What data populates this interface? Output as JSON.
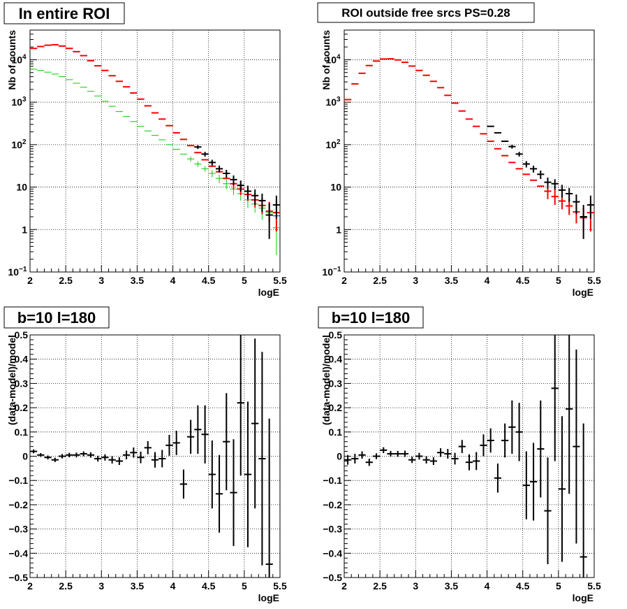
{
  "colors": {
    "data": "#000000",
    "model": "#ff0000",
    "total": "#0000ff",
    "component": "#00cc00"
  },
  "chart_data": [
    {
      "id": "p1",
      "type": "scatter",
      "title": "In entire ROI",
      "xlabel": "logE",
      "ylabel": "Nb of counts",
      "xlim": [
        2,
        5.5
      ],
      "ylim": [
        0.1,
        50000
      ],
      "yscale": "log",
      "grid": true,
      "xticks": [
        "2",
        "2.5",
        "3",
        "3.5",
        "4",
        "4.5",
        "5",
        "5.5"
      ],
      "yticks": [
        {
          "v": 0.1,
          "b": "10",
          "e": "−1"
        },
        {
          "v": 1,
          "b": "1"
        },
        {
          "v": 10,
          "b": "10"
        },
        {
          "v": 100,
          "b": "10",
          "e": "2"
        },
        {
          "v": 1000,
          "b": "10",
          "e": "3"
        },
        {
          "v": 10000,
          "b": "10",
          "e": "4"
        }
      ],
      "series": [
        {
          "color": "#0000ff",
          "x": [
            2.05,
            2.15,
            2.25,
            2.35,
            2.45,
            2.55,
            2.65,
            2.75,
            2.85,
            2.95,
            3.05,
            3.15,
            3.25,
            3.35,
            3.45,
            3.55,
            3.65,
            3.75,
            3.85,
            3.95,
            4.05,
            4.15,
            4.25,
            4.35,
            4.45,
            4.55,
            4.65,
            4.75,
            4.85,
            4.95,
            5.05,
            5.15,
            5.25,
            5.35,
            5.45
          ],
          "y": [
            18500,
            20500,
            22000,
            22500,
            21000,
            18500,
            15500,
            12500,
            9500,
            7200,
            5600,
            4200,
            3100,
            2300,
            1650,
            1180,
            820,
            560,
            400,
            280,
            190,
            133,
            95,
            65,
            44,
            31,
            23,
            16,
            12,
            9,
            6.7,
            5,
            3.7,
            2.7,
            2.1
          ]
        },
        {
          "color": "#00cc00",
          "x": [
            2.05,
            2.15,
            2.25,
            2.35,
            2.45,
            2.55,
            2.65,
            2.75,
            2.85,
            2.95,
            3.05,
            3.15,
            3.25,
            3.35,
            3.45,
            3.55,
            3.65,
            3.75,
            3.85,
            3.95,
            4.05,
            4.15,
            4.25,
            4.35,
            4.45,
            4.55,
            4.65,
            4.75,
            4.85,
            4.95,
            5.05,
            5.15,
            5.25,
            5.35,
            5.45
          ],
          "y": [
            6000,
            5600,
            5100,
            4600,
            4000,
            3400,
            2800,
            2250,
            1800,
            1400,
            1050,
            800,
            600,
            460,
            350,
            270,
            210,
            165,
            130,
            100,
            78,
            60,
            46,
            35,
            27,
            21,
            16,
            12,
            9,
            7,
            5,
            4,
            3.2,
            2.5,
            1.1
          ],
          "yerr_lo": [
            0,
            0,
            0,
            0,
            0,
            0,
            0,
            0,
            0,
            0,
            0,
            0,
            0,
            0,
            0,
            0,
            0,
            0,
            0,
            0,
            0,
            0,
            6,
            5,
            4,
            4,
            3.5,
            3,
            2.5,
            2.2,
            1.8,
            1.5,
            1.5,
            1.3,
            0.85
          ]
        },
        {
          "color": "#ff0000",
          "x": [
            2.05,
            2.15,
            2.25,
            2.35,
            2.45,
            2.55,
            2.65,
            2.75,
            2.85,
            2.95,
            3.05,
            3.15,
            3.25,
            3.35,
            3.45,
            3.55,
            3.65,
            3.75,
            3.85,
            3.95,
            4.05,
            4.15,
            4.25,
            4.35,
            4.45,
            4.55,
            4.65,
            4.75,
            4.85,
            4.95,
            5.05,
            5.15,
            5.25,
            5.35,
            5.45
          ],
          "y": [
            18500,
            20500,
            22000,
            22500,
            21000,
            18500,
            15500,
            12500,
            9500,
            7200,
            5600,
            4200,
            3100,
            2300,
            1650,
            1180,
            820,
            560,
            400,
            280,
            190,
            133,
            95,
            65,
            44,
            31,
            23,
            16,
            12,
            9,
            6.7,
            5,
            3.7,
            2.7,
            2.5
          ],
          "yerr_lo": [
            0,
            0,
            0,
            0,
            0,
            0,
            0,
            0,
            0,
            0,
            0,
            0,
            0,
            0,
            0,
            0,
            0,
            0,
            0,
            0,
            0,
            0,
            0,
            0,
            0,
            0,
            0,
            0,
            3,
            2.5,
            2,
            1.7,
            1.4,
            1.2,
            1.6
          ],
          "yerr_hi": [
            0,
            0,
            0,
            0,
            0,
            0,
            0,
            0,
            0,
            0,
            0,
            0,
            0,
            0,
            0,
            0,
            0,
            0,
            0,
            0,
            0,
            0,
            0,
            0,
            0,
            0,
            0,
            0,
            3.5,
            3,
            2.5,
            2.2,
            2,
            1.8,
            2.3
          ]
        },
        {
          "color": "#000000",
          "x": [
            4.35,
            4.45,
            4.55,
            4.65,
            4.75,
            4.85,
            4.95,
            5.05,
            5.15,
            5.25,
            5.35,
            5.45
          ],
          "y": [
            88,
            60,
            38,
            27,
            21,
            15,
            11,
            8,
            6.3,
            4.8,
            2.2,
            3.8
          ],
          "yerr_lo": [
            9,
            7.5,
            6,
            5,
            4.5,
            3.8,
            3.3,
            2.8,
            2.5,
            2.2,
            1.6,
            2
          ],
          "yerr_hi": [
            9,
            7.5,
            6,
            5,
            4.5,
            3.8,
            3.3,
            2.8,
            2.5,
            2.2,
            2,
            2.5
          ]
        }
      ]
    },
    {
      "id": "p2",
      "type": "scatter",
      "title": "ROI outside free srcs PS=0.28",
      "xlabel": "logE",
      "ylabel": "Nb of counts",
      "xlim": [
        2,
        5.5
      ],
      "ylim": [
        0.1,
        50000
      ],
      "yscale": "log",
      "grid": true,
      "xticks": [
        "2",
        "2.5",
        "3",
        "3.5",
        "4",
        "4.5",
        "5",
        "5.5"
      ],
      "yticks": [
        {
          "v": 0.1,
          "b": "10",
          "e": "−1"
        },
        {
          "v": 1,
          "b": "1"
        },
        {
          "v": 10,
          "b": "10"
        },
        {
          "v": 100,
          "b": "10",
          "e": "2"
        },
        {
          "v": 1000,
          "b": "10",
          "e": "3"
        },
        {
          "v": 10000,
          "b": "10",
          "e": "4"
        }
      ],
      "series": [
        {
          "color": "#ff0000",
          "x": [
            2.05,
            2.15,
            2.25,
            2.35,
            2.45,
            2.55,
            2.65,
            2.75,
            2.85,
            2.95,
            3.05,
            3.15,
            3.25,
            3.35,
            3.45,
            3.55,
            3.65,
            3.75,
            3.85,
            3.95,
            4.05,
            4.15,
            4.25,
            4.35,
            4.45,
            4.55,
            4.65,
            4.75,
            4.85,
            4.95,
            5.05,
            5.15,
            5.25,
            5.35,
            5.45
          ],
          "y": [
            1150,
            2700,
            4800,
            7300,
            9300,
            10400,
            10500,
            9900,
            8700,
            7100,
            5600,
            4300,
            3100,
            2200,
            1450,
            950,
            620,
            400,
            270,
            180,
            120,
            80,
            55,
            38,
            27,
            20,
            14.5,
            10.5,
            8,
            6,
            4.7,
            3.6,
            2.6,
            1.9,
            2.5
          ],
          "yerr_lo": [
            0,
            0,
            0,
            0,
            0,
            0,
            0,
            0,
            0,
            0,
            0,
            0,
            0,
            0,
            0,
            0,
            0,
            0,
            0,
            0,
            0,
            0,
            0,
            0,
            0,
            0,
            0,
            0,
            2.8,
            2.2,
            1.7,
            1.4,
            1.2,
            1,
            1.6
          ],
          "yerr_hi": [
            0,
            0,
            0,
            0,
            0,
            0,
            0,
            0,
            0,
            0,
            0,
            0,
            0,
            0,
            0,
            0,
            0,
            0,
            0,
            0,
            0,
            0,
            0,
            0,
            0,
            0,
            0,
            0,
            3.5,
            2.8,
            2.2,
            1.8,
            1.6,
            1.3,
            2.2
          ]
        },
        {
          "color": "#000000",
          "x": [
            4.05,
            4.15,
            4.25,
            4.35,
            4.45,
            4.55,
            4.65,
            4.75,
            4.85,
            4.95,
            5.05,
            5.15,
            5.25,
            5.35,
            5.45
          ],
          "y": [
            270,
            190,
            120,
            90,
            60,
            35,
            27,
            20,
            13,
            12,
            8.5,
            7,
            4.5,
            2,
            3.8
          ],
          "yerr_lo": [
            0,
            0,
            0,
            9,
            7.5,
            6,
            5,
            4.5,
            3.8,
            3.3,
            2.8,
            2.5,
            2.2,
            1.4,
            2
          ],
          "yerr_hi": [
            0,
            0,
            0,
            9,
            7.5,
            6,
            5,
            4.5,
            3.8,
            3.3,
            2.8,
            2.5,
            2.2,
            1.8,
            2.5
          ]
        }
      ]
    },
    {
      "id": "p3",
      "type": "scatter",
      "title": "b=10 l=180",
      "xlabel": "logE",
      "ylabel": "(data-model)/model",
      "xlim": [
        2,
        5.5
      ],
      "ylim": [
        -0.5,
        0.5
      ],
      "yscale": "linear",
      "grid": true,
      "xticks": [
        "2",
        "2.5",
        "3",
        "3.5",
        "4",
        "4.5",
        "5",
        "5.5"
      ],
      "yticks": [
        "−0.5",
        "−0.4",
        "−0.3",
        "−0.2",
        "−0.1",
        "0",
        "0.1",
        "0.2",
        "0.3",
        "0.4",
        "0.5"
      ],
      "series": [
        {
          "color": "#000000",
          "x": [
            2.05,
            2.15,
            2.25,
            2.35,
            2.45,
            2.55,
            2.65,
            2.75,
            2.85,
            2.95,
            3.05,
            3.15,
            3.25,
            3.35,
            3.45,
            3.55,
            3.65,
            3.75,
            3.85,
            3.95,
            4.05,
            4.15,
            4.25,
            4.35,
            4.45,
            4.55,
            4.65,
            4.75,
            4.85,
            4.95,
            5.05,
            5.15,
            5.25,
            5.35
          ],
          "y": [
            0.02,
            0.005,
            -0.005,
            -0.015,
            0,
            0.005,
            0.005,
            0.01,
            0.005,
            -0.01,
            -0.005,
            -0.015,
            -0.02,
            0.005,
            0.015,
            -0.005,
            0.035,
            -0.015,
            -0.01,
            0.045,
            0.055,
            -0.115,
            0.08,
            0.11,
            0.09,
            -0.075,
            -0.155,
            0.06,
            -0.15,
            0.22,
            -0.075,
            0.135,
            -0.01,
            -0.445
          ],
          "yerr": [
            0.008,
            0.008,
            0.008,
            0.009,
            0.009,
            0.009,
            0.01,
            0.01,
            0.011,
            0.012,
            0.013,
            0.015,
            0.016,
            0.018,
            0.021,
            0.024,
            0.027,
            0.032,
            0.036,
            0.043,
            0.05,
            0.06,
            0.07,
            0.1,
            0.12,
            0.14,
            0.16,
            0.2,
            0.22,
            0.3,
            0.3,
            0.35,
            0.44,
            0.6
          ]
        }
      ]
    },
    {
      "id": "p4",
      "type": "scatter",
      "title": "b=10 l=180",
      "xlabel": "logE",
      "ylabel": "(data-model)/model",
      "xlim": [
        2,
        5.5
      ],
      "ylim": [
        -0.5,
        0.5
      ],
      "yscale": "linear",
      "grid": true,
      "xticks": [
        "2",
        "2.5",
        "3",
        "3.5",
        "4",
        "4.5",
        "5",
        "5.5"
      ],
      "yticks": [
        "−0.5",
        "−0.4",
        "−0.3",
        "−0.2",
        "−0.1",
        "0",
        "0.1",
        "0.2",
        "0.3",
        "0.4",
        "0.5"
      ],
      "series": [
        {
          "color": "#000000",
          "x": [
            2.05,
            2.15,
            2.25,
            2.35,
            2.45,
            2.55,
            2.65,
            2.75,
            2.85,
            2.95,
            3.05,
            3.15,
            3.25,
            3.35,
            3.45,
            3.55,
            3.65,
            3.75,
            3.85,
            3.95,
            4.05,
            4.15,
            4.25,
            4.35,
            4.45,
            4.55,
            4.65,
            4.75,
            4.85,
            4.95,
            5.05,
            5.15,
            5.25,
            5.35
          ],
          "y": [
            -0.015,
            -0.01,
            0.005,
            -0.025,
            0,
            0.025,
            0.01,
            0.01,
            0.01,
            -0.015,
            0,
            -0.015,
            -0.02,
            0.015,
            0.01,
            -0.01,
            0.04,
            -0.025,
            -0.02,
            0.045,
            0.065,
            -0.09,
            0.065,
            0.12,
            0.1,
            -0.12,
            -0.105,
            0.03,
            -0.225,
            0.28,
            -0.135,
            0.195,
            0.04,
            -0.415
          ],
          "yerr": [
            0.02,
            0.02,
            0.015,
            0.015,
            0.012,
            0.012,
            0.012,
            0.012,
            0.013,
            0.013,
            0.014,
            0.015,
            0.016,
            0.018,
            0.02,
            0.024,
            0.027,
            0.033,
            0.037,
            0.045,
            0.05,
            0.06,
            0.07,
            0.11,
            0.12,
            0.14,
            0.16,
            0.2,
            0.22,
            0.3,
            0.3,
            0.35,
            0.4,
            0.55
          ]
        }
      ]
    }
  ]
}
